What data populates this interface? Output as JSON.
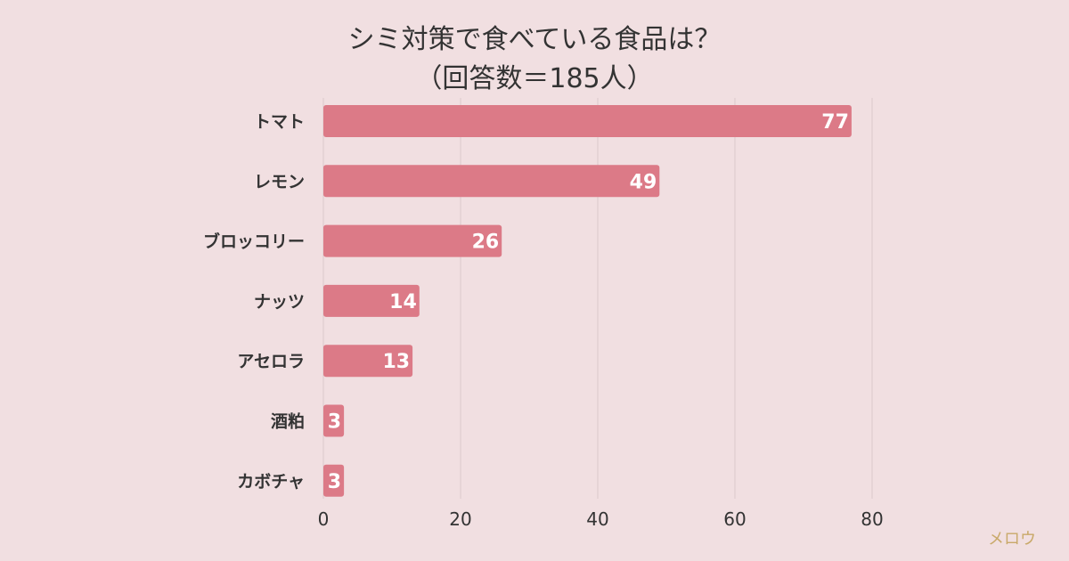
{
  "chart_data": {
    "type": "bar",
    "orientation": "horizontal",
    "title": "シミ対策で食べている食品は？",
    "subtitle": "（回答数＝185人）",
    "categories": [
      "トマト",
      "レモン",
      "ブロッコリー",
      "ナッツ",
      "アセロラ",
      "酒粕",
      "カボチャ"
    ],
    "values": [
      77,
      49,
      26,
      14,
      13,
      3,
      3
    ],
    "xlim": [
      0,
      80
    ],
    "xticks": [
      "0",
      "20",
      "40",
      "60",
      "80"
    ],
    "grid": true,
    "bar_color": "#dc7a87",
    "value_label_color": "#ffffff"
  },
  "watermark": {
    "text": "メロウ",
    "color": "#c9a96a"
  },
  "background_color": "#f1dfe1"
}
